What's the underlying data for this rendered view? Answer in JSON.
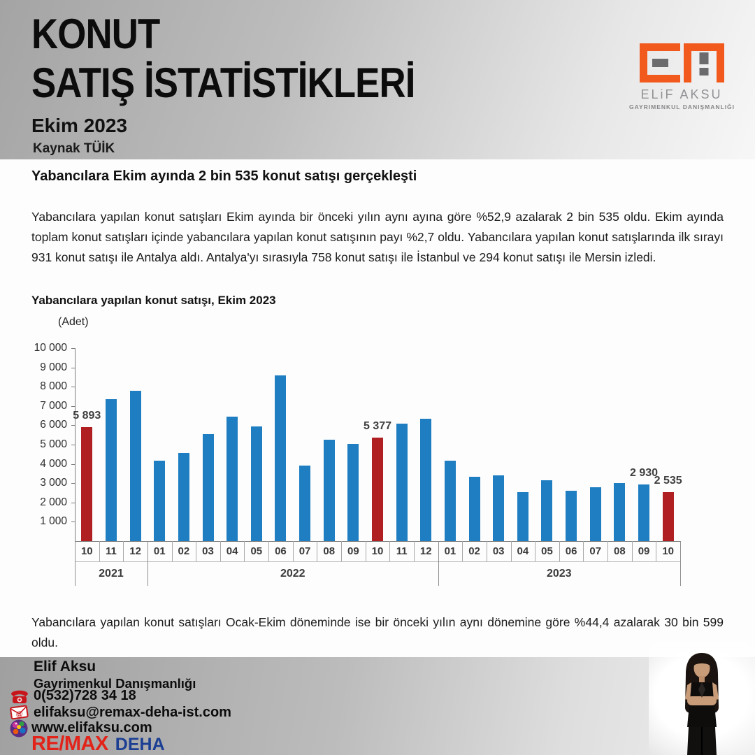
{
  "header": {
    "title_line1": "KONUT",
    "title_line2": "SATIŞ İSTATİSTİKLERİ",
    "subtitle": "Ekim 2023",
    "source": "Kaynak TÜİK",
    "logo": {
      "name": "ELiF AKSU",
      "tagline": "GAYRIMENKUL DANIŞMANLIĞI",
      "orange": "#F2591D",
      "gray": "#6B6B6E"
    }
  },
  "article": {
    "headline": "Yabancılara Ekim ayında 2 bin 535 konut satışı gerçekleşti",
    "paragraph1": "Yabancılara yapılan konut satışları Ekim ayında bir önceki yılın aynı ayına göre %52,9 azalarak 2 bin 535 oldu. Ekim ayında toplam konut satışları içinde yabancılara yapılan konut satışının payı %2,7 oldu. Yabancılara yapılan konut satışlarında ilk sırayı 931 konut satışı ile Antalya aldı. Antalya'yı sırasıyla 758 konut satışı ile İstanbul ve 294 konut satışı ile Mersin izledi.",
    "paragraph2": "Yabancılara yapılan konut satışları Ocak-Ekim döneminde ise bir önceki yılın aynı dönemine göre %44,4 azalarak 30 bin 599 oldu."
  },
  "chart_data": {
    "type": "bar",
    "title": "Yabancılara yapılan konut satışı, Ekim 2023",
    "unit_label": "(Adet)",
    "ylim": [
      0,
      10000
    ],
    "ytick_step": 1000,
    "ytick_labels": [
      "10 000",
      "9 000",
      "8 000",
      "7 000",
      "6 000",
      "5 000",
      "4 000",
      "3 000",
      "2 000",
      "1 000"
    ],
    "grid": false,
    "legend": "none",
    "bar_color": "#1F7EC2",
    "highlight_color": "#B01F22",
    "points": [
      {
        "year": "2021",
        "month": "10",
        "value": 5893,
        "highlight": true,
        "label": "5 893"
      },
      {
        "year": "2021",
        "month": "11",
        "value": 7350,
        "highlight": false
      },
      {
        "year": "2021",
        "month": "12",
        "value": 7800,
        "highlight": false
      },
      {
        "year": "2022",
        "month": "01",
        "value": 4150,
        "highlight": false
      },
      {
        "year": "2022",
        "month": "02",
        "value": 4550,
        "highlight": false
      },
      {
        "year": "2022",
        "month": "03",
        "value": 5550,
        "highlight": false
      },
      {
        "year": "2022",
        "month": "04",
        "value": 6450,
        "highlight": false
      },
      {
        "year": "2022",
        "month": "05",
        "value": 5950,
        "highlight": false
      },
      {
        "year": "2022",
        "month": "06",
        "value": 8600,
        "highlight": false
      },
      {
        "year": "2022",
        "month": "07",
        "value": 3900,
        "highlight": false
      },
      {
        "year": "2022",
        "month": "08",
        "value": 5250,
        "highlight": false
      },
      {
        "year": "2022",
        "month": "09",
        "value": 5050,
        "highlight": false
      },
      {
        "year": "2022",
        "month": "10",
        "value": 5377,
        "highlight": true,
        "label": "5 377"
      },
      {
        "year": "2022",
        "month": "11",
        "value": 6100,
        "highlight": false
      },
      {
        "year": "2022",
        "month": "12",
        "value": 6350,
        "highlight": false
      },
      {
        "year": "2023",
        "month": "01",
        "value": 4150,
        "highlight": false
      },
      {
        "year": "2023",
        "month": "02",
        "value": 3350,
        "highlight": false
      },
      {
        "year": "2023",
        "month": "03",
        "value": 3400,
        "highlight": false
      },
      {
        "year": "2023",
        "month": "04",
        "value": 2550,
        "highlight": false
      },
      {
        "year": "2023",
        "month": "05",
        "value": 3150,
        "highlight": false
      },
      {
        "year": "2023",
        "month": "06",
        "value": 2600,
        "highlight": false
      },
      {
        "year": "2023",
        "month": "07",
        "value": 2800,
        "highlight": false
      },
      {
        "year": "2023",
        "month": "08",
        "value": 3000,
        "highlight": false
      },
      {
        "year": "2023",
        "month": "09",
        "value": 2930,
        "highlight": false,
        "label": "2 930"
      },
      {
        "year": "2023",
        "month": "10",
        "value": 2535,
        "highlight": true,
        "label": "2 535"
      }
    ]
  },
  "footer": {
    "name": "Elif Aksu",
    "role": "Gayrimenkul Danışmanlığı",
    "contacts": [
      {
        "icon": "phone-icon",
        "text": "0(532)728 34 18"
      },
      {
        "icon": "email-icon",
        "text": "elifaksu@remax-deha-ist.com"
      },
      {
        "icon": "globe-icon",
        "text": "www.elifaksu.com"
      }
    ],
    "brand": {
      "remax": "RE/MAX",
      "deha": "DEHA",
      "remax_color": "#E2231A",
      "deha_color": "#1C3F94"
    }
  }
}
